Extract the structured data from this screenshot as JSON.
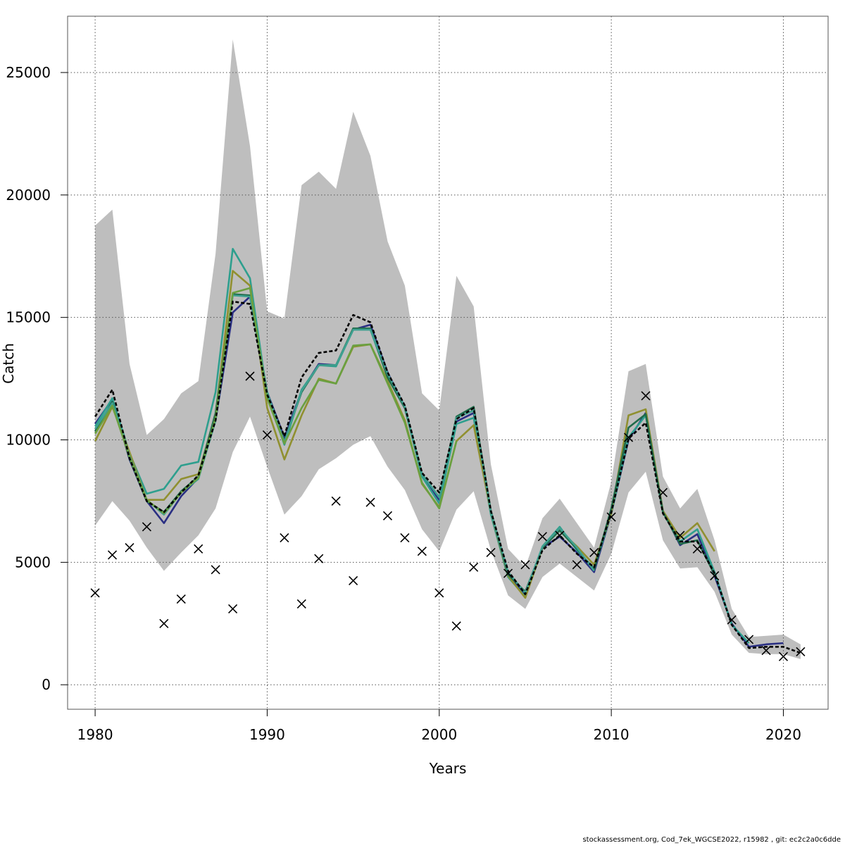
{
  "chart_data": {
    "type": "line",
    "xlabel": "Years",
    "ylabel": "Catch",
    "xlim": [
      1978.4,
      2022.6
    ],
    "ylim": [
      -1000,
      27300
    ],
    "x_ticks": [
      1980,
      1990,
      2000,
      2010,
      2020
    ],
    "y_ticks": [
      0,
      5000,
      10000,
      15000,
      20000,
      25000
    ],
    "grid": true,
    "colors": {
      "band": "#bebebe",
      "observed": "#000000",
      "base_run": "#000000",
      "series": [
        "#2a2f83",
        "#2e9f8e",
        "#909030",
        "#1f6b4a",
        "#3fa090",
        "#6aa040"
      ]
    },
    "years": [
      1980,
      1981,
      1982,
      1983,
      1984,
      1985,
      1986,
      1987,
      1988,
      1989,
      1990,
      1991,
      1992,
      1993,
      1994,
      1995,
      1996,
      1997,
      1998,
      1999,
      2000,
      2001,
      2002,
      2003,
      2004,
      2005,
      2006,
      2007,
      2008,
      2009,
      2010,
      2011,
      2012,
      2013,
      2014,
      2015,
      2016,
      2017,
      2018,
      2019,
      2020,
      2021
    ],
    "confidence_band": {
      "lower": [
        6500,
        7500,
        6700,
        5600,
        4650,
        5400,
        6100,
        7200,
        9500,
        10950,
        8900,
        6950,
        7700,
        8800,
        9250,
        9800,
        10150,
        8900,
        7950,
        6350,
        5450,
        7150,
        7900,
        5500,
        3650,
        3100,
        4400,
        4950,
        4400,
        3850,
        5350,
        7850,
        8700,
        5900,
        4750,
        4800,
        3800,
        2050,
        1300,
        1250,
        1250,
        1050
      ],
      "upper": [
        18750,
        19400,
        13100,
        10200,
        10850,
        11900,
        12400,
        17600,
        26350,
        22000,
        15250,
        14950,
        20400,
        20950,
        20250,
        23400,
        21600,
        18100,
        16300,
        11900,
        11200,
        16700,
        15450,
        9000,
        5550,
        4800,
        6800,
        7600,
        6600,
        5600,
        8300,
        12800,
        13100,
        8500,
        7200,
        8000,
        5900,
        3100,
        1950,
        2000,
        2050,
        1650
      ]
    },
    "base_run": {
      "name": "",
      "values": [
        10950,
        12050,
        9250,
        7500,
        7050,
        7850,
        8550,
        10800,
        15650,
        15550,
        11850,
        10150,
        12550,
        13550,
        13650,
        15100,
        14800,
        12750,
        11400,
        8650,
        7850,
        10850,
        11300,
        7100,
        4650,
        3700,
        5500,
        6100,
        5350,
        4800,
        7050,
        10050,
        10700,
        7000,
        5850,
        5850,
        4550,
        2450,
        1500,
        1550,
        1550,
        1300
      ]
    },
    "series": [
      {
        "name": "",
        "start": 1980,
        "values": [
          10650,
          11650,
          9200,
          7500,
          6600,
          7700,
          8450,
          10800,
          15200,
          15850,
          11950,
          10100,
          12000,
          13100,
          13050,
          14500,
          14700,
          12750,
          11350,
          8550,
          7550,
          10750,
          11100,
          7050,
          4550,
          3650,
          5600,
          6050,
          5400,
          4600,
          7000,
          10000,
          11100,
          7100,
          5700,
          6150,
          4450,
          2500,
          1550,
          1650,
          1700
        ]
      },
      {
        "name": "",
        "start": 1980,
        "values": [
          10550,
          11700,
          9450,
          7800,
          8000,
          8950,
          9100,
          11950,
          17800,
          16600,
          11800,
          9800,
          12050,
          13050,
          13000,
          14500,
          14500,
          12550,
          11300,
          8500,
          7400,
          10650,
          10900,
          6950,
          4400,
          3600,
          5650,
          6450,
          5500,
          4750,
          7000,
          10100,
          11000,
          7050,
          5850,
          6350,
          4600,
          2450,
          1700
        ]
      },
      {
        "name": "",
        "start": 1980,
        "values": [
          9950,
          11350,
          9500,
          7550,
          7550,
          8400,
          8600,
          11050,
          16900,
          16300,
          11300,
          9200,
          11000,
          12500,
          12300,
          13800,
          13900,
          12400,
          10800,
          8200,
          7250,
          9950,
          10600,
          7050,
          4450,
          3550,
          5600,
          6300,
          5650,
          4900,
          7000,
          11000,
          11250,
          7100,
          6000,
          6600,
          5450
        ]
      },
      {
        "name": "",
        "start": 1980,
        "values": [
          10350,
          11550,
          9250,
          7500,
          7050,
          7900,
          8500,
          11100,
          15950,
          15900,
          11800,
          9950,
          11950,
          13050,
          13050,
          14550,
          14550,
          12550,
          11300,
          8600,
          7650,
          10950,
          11350,
          7100,
          4500,
          3800,
          5600,
          6300,
          5550,
          4700,
          7200,
          10500,
          11050,
          7050,
          5750,
          5900,
          4500
        ]
      },
      {
        "name": "",
        "start": 1980,
        "values": [
          10450,
          11500,
          9350,
          7550,
          6950,
          7850,
          8400,
          10800,
          15900,
          15850,
          11950,
          9900,
          12000,
          13050,
          13050,
          14500,
          14500,
          12700,
          11350,
          8600,
          7650,
          10900,
          11200,
          7050,
          4600,
          3750,
          5650,
          6400,
          5600,
          4650
        ]
      },
      {
        "name": "",
        "start": 1980,
        "values": [
          10250,
          11400,
          9300,
          7550,
          7000,
          7850,
          8450,
          10900,
          16000,
          16200,
          11700,
          9850,
          11300,
          12450,
          12300,
          13850,
          13900,
          12300,
          10700,
          8250,
          7200,
          9950
        ]
      }
    ],
    "observed": {
      "name": "",
      "values": [
        3750,
        5300,
        5600,
        6450,
        2500,
        3500,
        5550,
        4700,
        3100,
        12600,
        10200,
        6000,
        3300,
        5150,
        7500,
        4250,
        7450,
        6900,
        6000,
        5450,
        3750,
        2400,
        4800,
        5400,
        4550,
        4900,
        6050,
        6100,
        4900,
        5400,
        6850,
        10100,
        11800,
        7850,
        6100,
        5550,
        4450,
        2650,
        1850,
        1400,
        1150,
        1350
      ]
    }
  },
  "footer": {
    "text": "stockassessment.org, Cod_7ek_WGCSE2022, r15982 , git: ec2c2a0c6dde"
  }
}
